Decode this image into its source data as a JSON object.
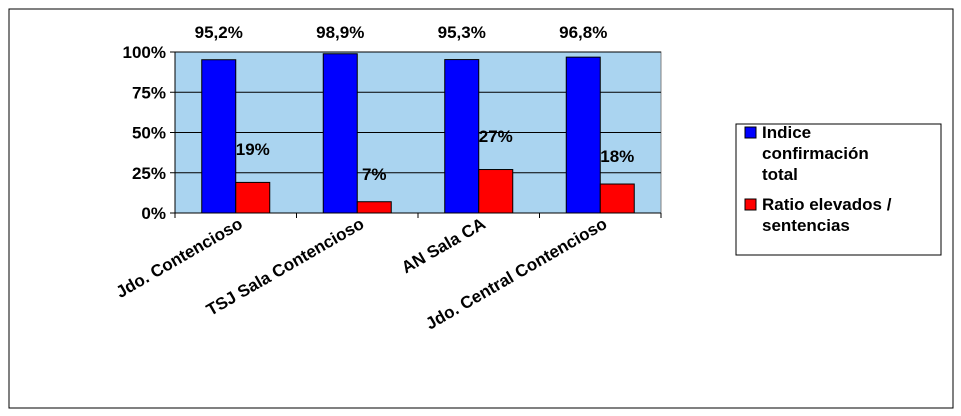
{
  "chart_data": {
    "type": "bar",
    "categories": [
      "Jdo. Contencioso",
      "TSJ Sala Contencioso",
      "AN Sala CA",
      "Jdo. Central Contencioso"
    ],
    "series": [
      {
        "name": "Indice confirmación total",
        "values": [
          95.2,
          98.9,
          95.3,
          96.8
        ],
        "labels": [
          "95,2%",
          "98,9%",
          "95,3%",
          "96,8%"
        ],
        "color": "#0000ff"
      },
      {
        "name": "Ratio elevados / sentencias",
        "values": [
          19,
          7,
          27,
          18
        ],
        "labels": [
          "19%",
          "7%",
          "27%",
          "18%"
        ],
        "color": "#ff0000"
      }
    ],
    "yticks": [
      0,
      25,
      50,
      75,
      100
    ],
    "ytick_labels": [
      "0%",
      "25%",
      "50%",
      "75%",
      "100%"
    ],
    "ylim": [
      0,
      100
    ],
    "grid": true,
    "plot_background": "#aad4f0",
    "legend_position": "right",
    "legend_lines": [
      [
        "Indice",
        "confirmación",
        "total"
      ],
      [
        "Ratio elevados /",
        "sentencias"
      ]
    ]
  }
}
